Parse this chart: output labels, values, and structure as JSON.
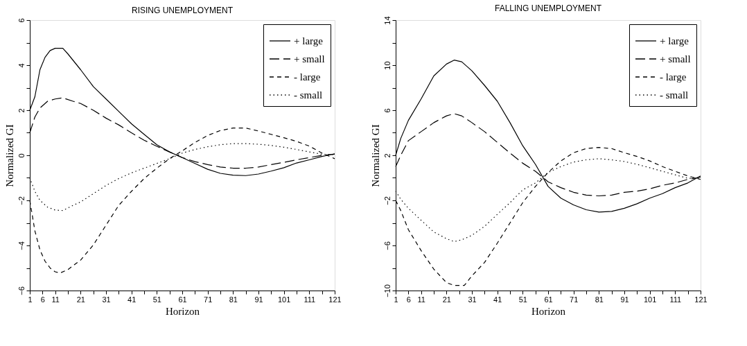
{
  "chart_data": [
    {
      "type": "line",
      "title": "RISING UNEMPLOYMENT",
      "xlabel": "Horizon",
      "ylabel": "Normalized GI",
      "legend": "top right",
      "grid": false,
      "marker": "none",
      "xlim": [
        1,
        121
      ],
      "ylim": [
        -6,
        6
      ],
      "xticks": [
        1,
        6,
        11,
        {
          "value": 16,
          "label": null
        },
        21,
        {
          "value": 26,
          "label": null
        },
        31,
        {
          "value": 36,
          "label": null
        },
        41,
        {
          "value": 46,
          "label": null
        },
        51,
        {
          "value": 56,
          "label": null
        },
        61,
        {
          "value": 66,
          "label": null
        },
        71,
        {
          "value": 76,
          "label": null
        },
        81,
        {
          "value": 86,
          "label": null
        },
        91,
        {
          "value": 96,
          "label": null
        },
        101,
        {
          "value": 106,
          "label": null
        },
        111,
        {
          "value": 116,
          "label": null
        },
        121
      ],
      "yticks": [
        -6,
        {
          "value": -5,
          "label": null
        },
        -4,
        {
          "value": -3,
          "label": null
        },
        -2,
        {
          "value": -1,
          "label": null
        },
        0,
        {
          "value": 1,
          "label": null
        },
        2,
        {
          "value": 3,
          "label": null
        },
        4,
        {
          "value": 5,
          "label": null
        },
        6
      ],
      "series": [
        {
          "name": "+ large",
          "color": "#000000",
          "line_style": "solid",
          "x": [
            1,
            3,
            5,
            7,
            9,
            11,
            14,
            16,
            21,
            26,
            31,
            36,
            41,
            46,
            51,
            56,
            61,
            66,
            71,
            76,
            81,
            86,
            91,
            96,
            101,
            106,
            111,
            116,
            121
          ],
          "values": [
            2.0,
            2.6,
            3.8,
            4.35,
            4.65,
            4.75,
            4.75,
            4.5,
            3.8,
            3.05,
            2.5,
            1.95,
            1.4,
            0.93,
            0.47,
            0.15,
            -0.1,
            -0.36,
            -0.62,
            -0.8,
            -0.88,
            -0.9,
            -0.83,
            -0.7,
            -0.55,
            -0.34,
            -0.2,
            -0.05,
            0.07
          ]
        },
        {
          "name": "+ small",
          "color": "#000000",
          "line_style": "dashed",
          "x": [
            1,
            3,
            5,
            8,
            11,
            14,
            18,
            21,
            26,
            31,
            36,
            41,
            46,
            51,
            56,
            61,
            66,
            71,
            76,
            81,
            86,
            91,
            96,
            101,
            106,
            111,
            116,
            121
          ],
          "values": [
            1.0,
            1.7,
            2.1,
            2.4,
            2.5,
            2.55,
            2.4,
            2.3,
            2.0,
            1.65,
            1.35,
            1.0,
            0.67,
            0.4,
            0.15,
            -0.1,
            -0.28,
            -0.41,
            -0.52,
            -0.57,
            -0.57,
            -0.52,
            -0.41,
            -0.31,
            -0.2,
            -0.1,
            0.0,
            0.05
          ]
        },
        {
          "name": "- large",
          "color": "#000000",
          "line_style": "dashed",
          "x": [
            1,
            3,
            5,
            7,
            9,
            11,
            13,
            16,
            21,
            26,
            31,
            36,
            41,
            46,
            51,
            56,
            61,
            66,
            71,
            76,
            81,
            86,
            91,
            96,
            101,
            106,
            111,
            116,
            121
          ],
          "values": [
            -2.0,
            -3.35,
            -4.2,
            -4.7,
            -5.0,
            -5.17,
            -5.22,
            -5.07,
            -4.65,
            -3.98,
            -3.1,
            -2.22,
            -1.6,
            -1.03,
            -0.57,
            -0.15,
            0.2,
            0.57,
            0.88,
            1.1,
            1.21,
            1.21,
            1.08,
            0.93,
            0.78,
            0.62,
            0.41,
            0.1,
            -0.15
          ]
        },
        {
          "name": "- small",
          "color": "#000000",
          "line_style": "dotted",
          "x": [
            1,
            3,
            5,
            8,
            11,
            14,
            18,
            21,
            26,
            31,
            36,
            41,
            46,
            51,
            56,
            61,
            66,
            71,
            76,
            81,
            86,
            91,
            96,
            101,
            106,
            111,
            116,
            121
          ],
          "values": [
            -1.0,
            -1.6,
            -2.0,
            -2.3,
            -2.43,
            -2.45,
            -2.22,
            -2.07,
            -1.7,
            -1.34,
            -1.03,
            -0.78,
            -0.57,
            -0.36,
            -0.15,
            0.1,
            0.26,
            0.38,
            0.47,
            0.52,
            0.52,
            0.49,
            0.44,
            0.36,
            0.26,
            0.15,
            0.05,
            0.03
          ]
        }
      ]
    },
    {
      "type": "line",
      "title": "FALLING UNEMPLOYMENT",
      "xlabel": "Horizon",
      "ylabel": "Normalized GI",
      "legend": "top right",
      "grid": false,
      "marker": "none",
      "xlim": [
        1,
        121
      ],
      "ylim": [
        -10,
        14
      ],
      "xticks": [
        1,
        6,
        11,
        {
          "value": 16,
          "label": null
        },
        21,
        {
          "value": 26,
          "label": null
        },
        31,
        {
          "value": 36,
          "label": null
        },
        41,
        {
          "value": 46,
          "label": null
        },
        51,
        {
          "value": 56,
          "label": null
        },
        61,
        {
          "value": 66,
          "label": null
        },
        71,
        {
          "value": 76,
          "label": null
        },
        81,
        {
          "value": 86,
          "label": null
        },
        91,
        {
          "value": 96,
          "label": null
        },
        101,
        {
          "value": 106,
          "label": null
        },
        111,
        {
          "value": 116,
          "label": null
        },
        121
      ],
      "yticks": [
        -10,
        {
          "value": -8,
          "label": null
        },
        -6,
        {
          "value": -4,
          "label": null
        },
        -2,
        {
          "value": 0,
          "label": null
        },
        2,
        {
          "value": 4,
          "label": null
        },
        6,
        {
          "value": 8,
          "label": null
        },
        10,
        {
          "value": 12,
          "label": null
        },
        14
      ],
      "series": [
        {
          "name": "+ large",
          "color": "#000000",
          "line_style": "solid",
          "x": [
            1,
            3,
            6,
            11,
            16,
            21,
            24,
            27,
            31,
            36,
            41,
            46,
            51,
            56,
            61,
            66,
            71,
            76,
            81,
            86,
            91,
            96,
            101,
            106,
            111,
            116,
            121
          ],
          "values": [
            2.0,
            3.5,
            5.1,
            7.0,
            9.05,
            10.1,
            10.45,
            10.3,
            9.5,
            8.2,
            6.8,
            4.9,
            2.85,
            1.2,
            -0.76,
            -1.8,
            -2.4,
            -2.83,
            -3.04,
            -2.98,
            -2.7,
            -2.3,
            -1.8,
            -1.4,
            -0.87,
            -0.45,
            0.17
          ]
        },
        {
          "name": "+ small",
          "color": "#000000",
          "line_style": "dashed",
          "x": [
            1,
            3,
            6,
            11,
            16,
            21,
            24,
            27,
            31,
            36,
            41,
            46,
            51,
            56,
            61,
            66,
            71,
            76,
            81,
            86,
            91,
            96,
            101,
            106,
            111,
            116,
            121
          ],
          "values": [
            1.0,
            2.0,
            3.3,
            4.1,
            4.9,
            5.5,
            5.7,
            5.5,
            4.9,
            4.1,
            3.15,
            2.2,
            1.3,
            0.58,
            -0.35,
            -0.87,
            -1.28,
            -1.53,
            -1.6,
            -1.53,
            -1.28,
            -1.18,
            -0.97,
            -0.66,
            -0.45,
            -0.14,
            0.06
          ]
        },
        {
          "name": "- large",
          "color": "#000000",
          "line_style": "dashed",
          "x": [
            1,
            3,
            6,
            11,
            16,
            21,
            24,
            28,
            31,
            36,
            41,
            46,
            51,
            56,
            61,
            66,
            71,
            76,
            81,
            86,
            91,
            96,
            101,
            106,
            111,
            116,
            121
          ],
          "values": [
            -2.0,
            -2.9,
            -4.6,
            -6.45,
            -8.1,
            -9.3,
            -9.55,
            -9.55,
            -8.7,
            -7.5,
            -5.8,
            -4.0,
            -2.2,
            -0.76,
            0.48,
            1.5,
            2.23,
            2.6,
            2.7,
            2.6,
            2.23,
            1.9,
            1.5,
            1.0,
            0.58,
            0.17,
            -0.14
          ]
        },
        {
          "name": "- small",
          "color": "#000000",
          "line_style": "dotted",
          "x": [
            1,
            3,
            6,
            11,
            16,
            21,
            24,
            27,
            31,
            36,
            41,
            46,
            51,
            56,
            61,
            66,
            71,
            76,
            81,
            86,
            91,
            96,
            101,
            106,
            111,
            116,
            121
          ],
          "values": [
            -1.18,
            -1.9,
            -2.7,
            -3.76,
            -4.8,
            -5.4,
            -5.66,
            -5.5,
            -5.1,
            -4.3,
            -3.24,
            -2.2,
            -1.07,
            -0.45,
            0.48,
            1.0,
            1.4,
            1.6,
            1.7,
            1.6,
            1.45,
            1.2,
            0.9,
            0.58,
            0.27,
            -0.04,
            -0.04
          ]
        }
      ]
    }
  ]
}
